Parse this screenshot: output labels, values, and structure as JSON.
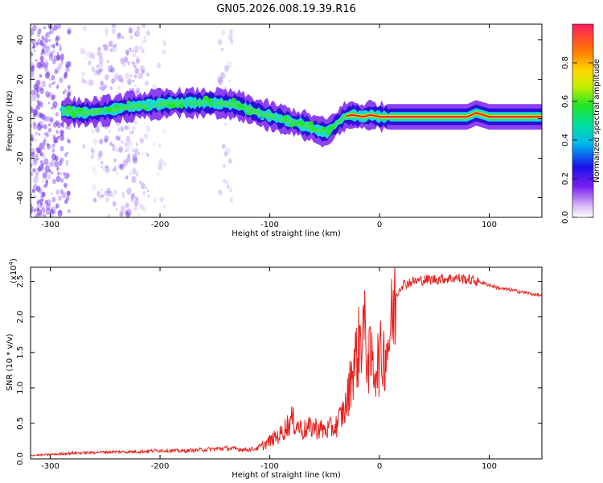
{
  "colors": {
    "axis": "#000000",
    "snr_line": "#e8201c",
    "ridge_core": "#e8201c",
    "ridge_mid": "#19d8d0",
    "ridge_outer": "#2a0fd6",
    "scatter": "#7a3cf0"
  },
  "chart_data": [
    {
      "id": "spectrogram",
      "type": "heatmap",
      "title": "GN05.2026.008.19.39.R16",
      "xlabel": "Height of straight line (km)",
      "ylabel": "Frequency (Hz)",
      "xlim": [
        -318,
        148
      ],
      "ylim": [
        -50,
        48
      ],
      "xticks": [
        -300,
        -200,
        -100,
        0,
        100
      ],
      "yticks": [
        -40,
        -20,
        0,
        20,
        40
      ],
      "colorbar": {
        "label": "Normalized spectral amplitude",
        "range": [
          0,
          1
        ],
        "ticks": [
          "0.0",
          "0.2",
          "0.4",
          "0.6",
          "0.8"
        ],
        "tick_values": [
          0,
          0.2,
          0.4,
          0.6,
          0.8
        ]
      },
      "ridge": {
        "x": [
          -290,
          -270,
          -250,
          -230,
          -210,
          -190,
          -170,
          -150,
          -130,
          -110,
          -90,
          -70,
          -55,
          -48,
          -40,
          -32,
          -25,
          -15,
          -8,
          0,
          20,
          60,
          80,
          88,
          100,
          148
        ],
        "y": [
          4,
          3,
          4,
          6,
          7,
          8,
          8,
          8,
          7,
          3,
          0,
          -3,
          -6,
          -7,
          -3,
          1,
          2,
          1,
          2,
          1,
          1,
          1,
          1,
          3,
          1,
          1
        ]
      }
    },
    {
      "id": "snr",
      "type": "line",
      "title": "",
      "xlabel": "Height of straight line (km)",
      "ylabel": "SNR (10 * v/v)",
      "yscale_label": "(x10",
      "yscale_exp": "4",
      "xlim": [
        -318,
        148
      ],
      "ylim": [
        0,
        27000
      ],
      "xticks": [
        -300,
        -200,
        -100,
        0,
        100
      ],
      "yticks": [
        0,
        5000,
        10000,
        15000,
        20000,
        25000
      ],
      "ytick_labels": [
        "0.0",
        "0.5",
        "1.0",
        "1.5",
        "2.0",
        "2.5"
      ],
      "series": [
        {
          "name": "SNR",
          "x": [
            -318,
            -300,
            -280,
            -260,
            -240,
            -220,
            -200,
            -180,
            -160,
            -140,
            -120,
            -110,
            -100,
            -90,
            -80,
            -70,
            -60,
            -50,
            -40,
            -35,
            -30,
            -25,
            -20,
            -15,
            -10,
            -5,
            0,
            5,
            10,
            15,
            20,
            30,
            40,
            50,
            60,
            70,
            80,
            90,
            100,
            110,
            120,
            130,
            140,
            148
          ],
          "y": [
            500,
            600,
            800,
            900,
            1000,
            1000,
            1200,
            1100,
            1300,
            1500,
            1300,
            1500,
            2500,
            3500,
            5500,
            4000,
            4500,
            4000,
            4500,
            6000,
            7500,
            12500,
            15000,
            19000,
            14000,
            13000,
            14000,
            15000,
            18000,
            23000,
            24500,
            25000,
            25200,
            25300,
            25400,
            25500,
            25300,
            25000,
            24500,
            24000,
            23800,
            23500,
            23200,
            23000
          ]
        }
      ]
    }
  ]
}
